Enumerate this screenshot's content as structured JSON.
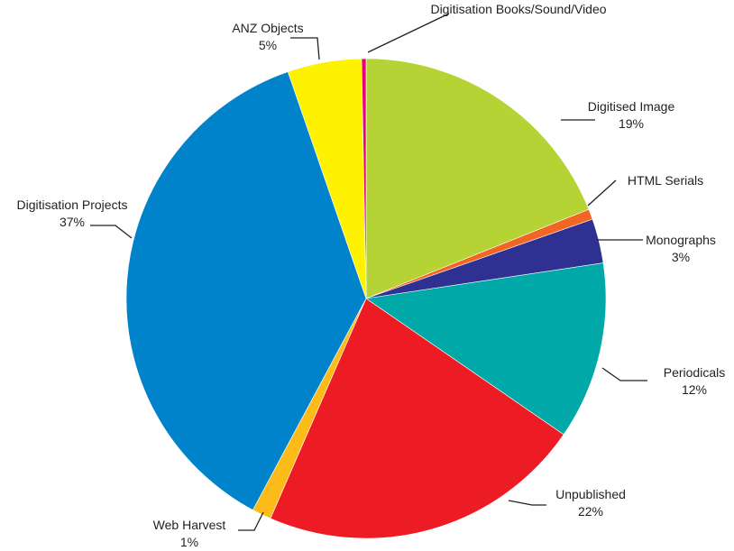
{
  "chart_data": {
    "type": "pie",
    "title": "",
    "slices": [
      {
        "label": "Digitised Image",
        "value": 19,
        "value_label": "19%",
        "color": "#b5d334"
      },
      {
        "label": "HTML Serials",
        "value": 0.7,
        "value_label": "",
        "color": "#f26522"
      },
      {
        "label": "Monographs",
        "value": 3,
        "value_label": "3%",
        "color": "#2e3192"
      },
      {
        "label": "Periodicals",
        "value": 12,
        "value_label": "12%",
        "color": "#00a8a8"
      },
      {
        "label": "Unpublished",
        "value": 22,
        "value_label": "22%",
        "color": "#ed1c24"
      },
      {
        "label": "Web Harvest",
        "value": 1.3,
        "value_label": "1%",
        "color": "#fdbb1a"
      },
      {
        "label": "Digitisation Projects",
        "value": 37,
        "value_label": "37%",
        "color": "#0083ca"
      },
      {
        "label": "ANZ Objects",
        "value": 5,
        "value_label": "5%",
        "color": "#fff200"
      },
      {
        "label": "Digitisation Books/Sound/Video",
        "value": 0.3,
        "value_label": "",
        "color": "#e6007e"
      }
    ]
  }
}
